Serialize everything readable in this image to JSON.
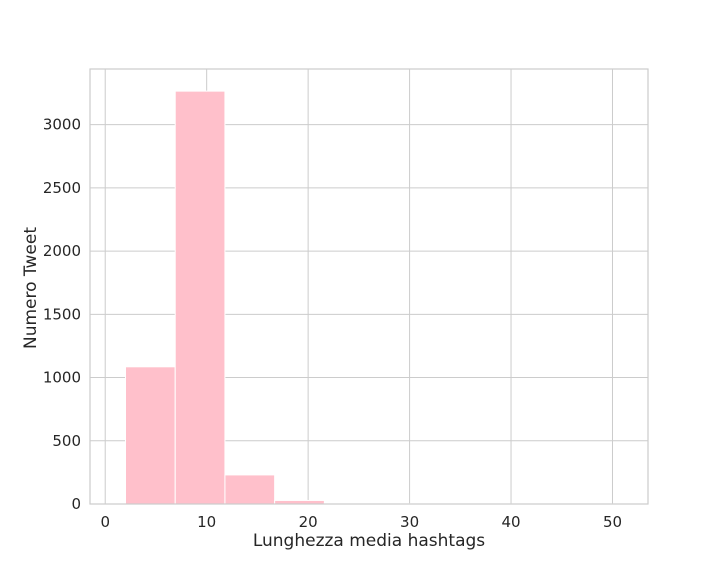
{
  "chart_data": {
    "type": "bar",
    "subtype": "histogram",
    "title": "",
    "xlabel": "Lunghezza media hashtags",
    "ylabel": "Numero Tweet",
    "xlim": [
      -1.5,
      53.5
    ],
    "ylim": [
      0,
      3440
    ],
    "xticks": [
      0,
      10,
      20,
      30,
      40,
      50
    ],
    "yticks": [
      0,
      500,
      1000,
      1500,
      2000,
      2500,
      3000
    ],
    "grid": true,
    "legend": "none",
    "bar_color": "#ffc0cb",
    "bar_edge_color": "#ffffff",
    "bins": [
      {
        "x0": 2.0,
        "x1": 6.9,
        "count": 1085
      },
      {
        "x0": 6.9,
        "x1": 11.8,
        "count": 3265
      },
      {
        "x0": 11.8,
        "x1": 16.7,
        "count": 230
      },
      {
        "x0": 16.7,
        "x1": 21.6,
        "count": 28
      },
      {
        "x0": 21.6,
        "x1": 26.5,
        "count": 4
      },
      {
        "x0": 26.5,
        "x1": 31.4,
        "count": 2
      },
      {
        "x0": 31.4,
        "x1": 36.3,
        "count": 1
      },
      {
        "x0": 36.3,
        "x1": 41.2,
        "count": 1
      },
      {
        "x0": 41.2,
        "x1": 46.1,
        "count": 1
      },
      {
        "x0": 46.1,
        "x1": 51.0,
        "count": 1
      }
    ]
  }
}
